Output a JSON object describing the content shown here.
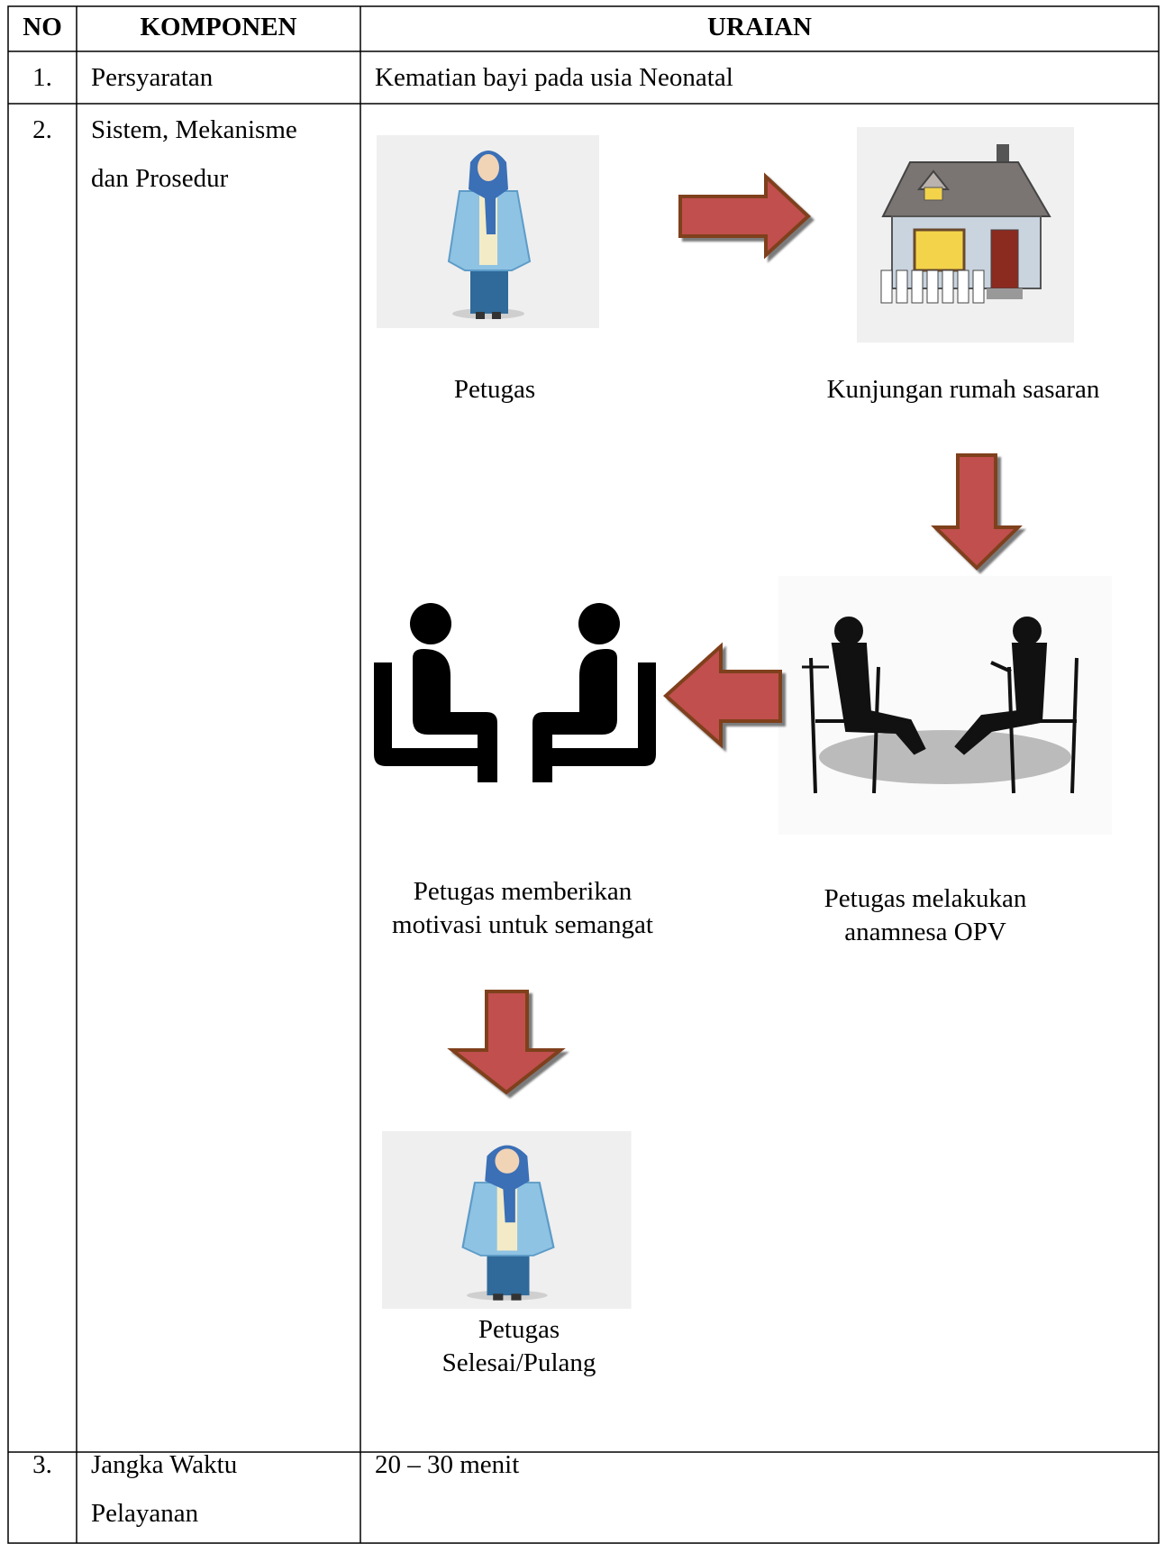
{
  "table": {
    "header": {
      "no": "NO",
      "component": "KOMPONEN",
      "description": "URAIAN"
    },
    "rows": [
      {
        "no": "1.",
        "component": "Persyaratan",
        "description": "Kematian bayi pada usia Neonatal"
      },
      {
        "no": "2.",
        "component": "Sistem, Mekanisme dan Prosedur",
        "flow": [
          {
            "label": "Petugas"
          },
          {
            "label": "Kunjungan rumah sasaran"
          },
          {
            "label": "Petugas melakukan anamnesa OPV"
          },
          {
            "label": "Petugas memberikan motivasi untuk semangat"
          },
          {
            "label": "Petugas Selesai/Pulang"
          }
        ]
      },
      {
        "no": "3.",
        "component": "Jangka Waktu Pelayanan",
        "description": "20 – 30 menit"
      }
    ]
  }
}
